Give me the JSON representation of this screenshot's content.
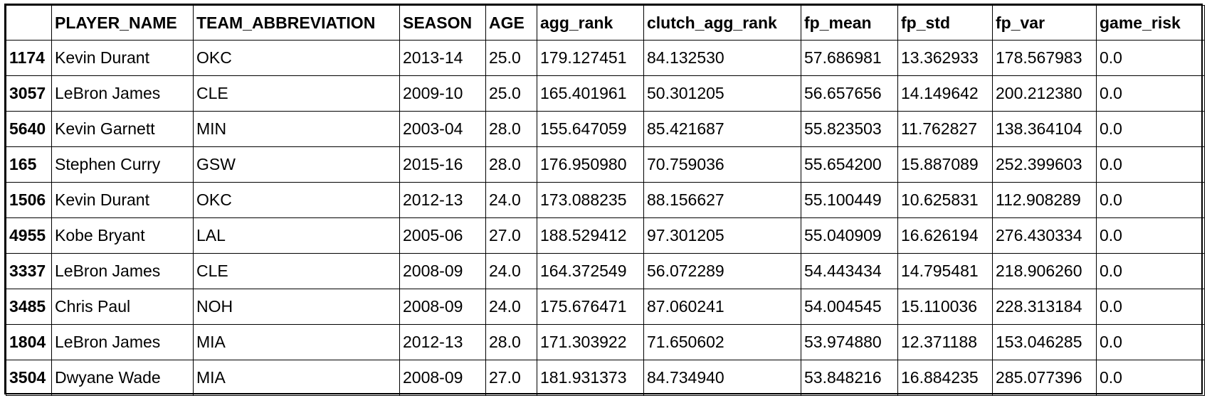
{
  "table": {
    "index_header": "",
    "columns": [
      "PLAYER_NAME",
      "TEAM_ABBREVIATION",
      "SEASON",
      "AGE",
      "agg_rank",
      "clutch_agg_rank",
      "fp_mean",
      "fp_std",
      "fp_var",
      "game_risk"
    ],
    "rows": [
      {
        "index": "1174",
        "cells": [
          "Kevin Durant",
          "OKC",
          "2013-14",
          "25.0",
          "179.127451",
          "84.132530",
          "57.686981",
          "13.362933",
          "178.567983",
          "0.0"
        ]
      },
      {
        "index": "3057",
        "cells": [
          "LeBron James",
          "CLE",
          "2009-10",
          "25.0",
          "165.401961",
          "50.301205",
          "56.657656",
          "14.149642",
          "200.212380",
          "0.0"
        ]
      },
      {
        "index": "5640",
        "cells": [
          "Kevin Garnett",
          "MIN",
          "2003-04",
          "28.0",
          "155.647059",
          "85.421687",
          "55.823503",
          "11.762827",
          "138.364104",
          "0.0"
        ]
      },
      {
        "index": "165",
        "cells": [
          "Stephen Curry",
          "GSW",
          "2015-16",
          "28.0",
          "176.950980",
          "70.759036",
          "55.654200",
          "15.887089",
          "252.399603",
          "0.0"
        ]
      },
      {
        "index": "1506",
        "cells": [
          "Kevin Durant",
          "OKC",
          "2012-13",
          "24.0",
          "173.088235",
          "88.156627",
          "55.100449",
          "10.625831",
          "112.908289",
          "0.0"
        ]
      },
      {
        "index": "4955",
        "cells": [
          "Kobe Bryant",
          "LAL",
          "2005-06",
          "27.0",
          "188.529412",
          "97.301205",
          "55.040909",
          "16.626194",
          "276.430334",
          "0.0"
        ]
      },
      {
        "index": "3337",
        "cells": [
          "LeBron James",
          "CLE",
          "2008-09",
          "24.0",
          "164.372549",
          "56.072289",
          "54.443434",
          "14.795481",
          "218.906260",
          "0.0"
        ]
      },
      {
        "index": "3485",
        "cells": [
          "Chris Paul",
          "NOH",
          "2008-09",
          "24.0",
          "175.676471",
          "87.060241",
          "54.004545",
          "15.110036",
          "228.313184",
          "0.0"
        ]
      },
      {
        "index": "1804",
        "cells": [
          "LeBron James",
          "MIA",
          "2012-13",
          "28.0",
          "171.303922",
          "71.650602",
          "53.974880",
          "12.371188",
          "153.046285",
          "0.0"
        ]
      },
      {
        "index": "3504",
        "cells": [
          "Dwyane Wade",
          "MIA",
          "2008-09",
          "27.0",
          "181.931373",
          "84.734940",
          "53.848216",
          "16.884235",
          "285.077396",
          "0.0"
        ]
      }
    ]
  }
}
